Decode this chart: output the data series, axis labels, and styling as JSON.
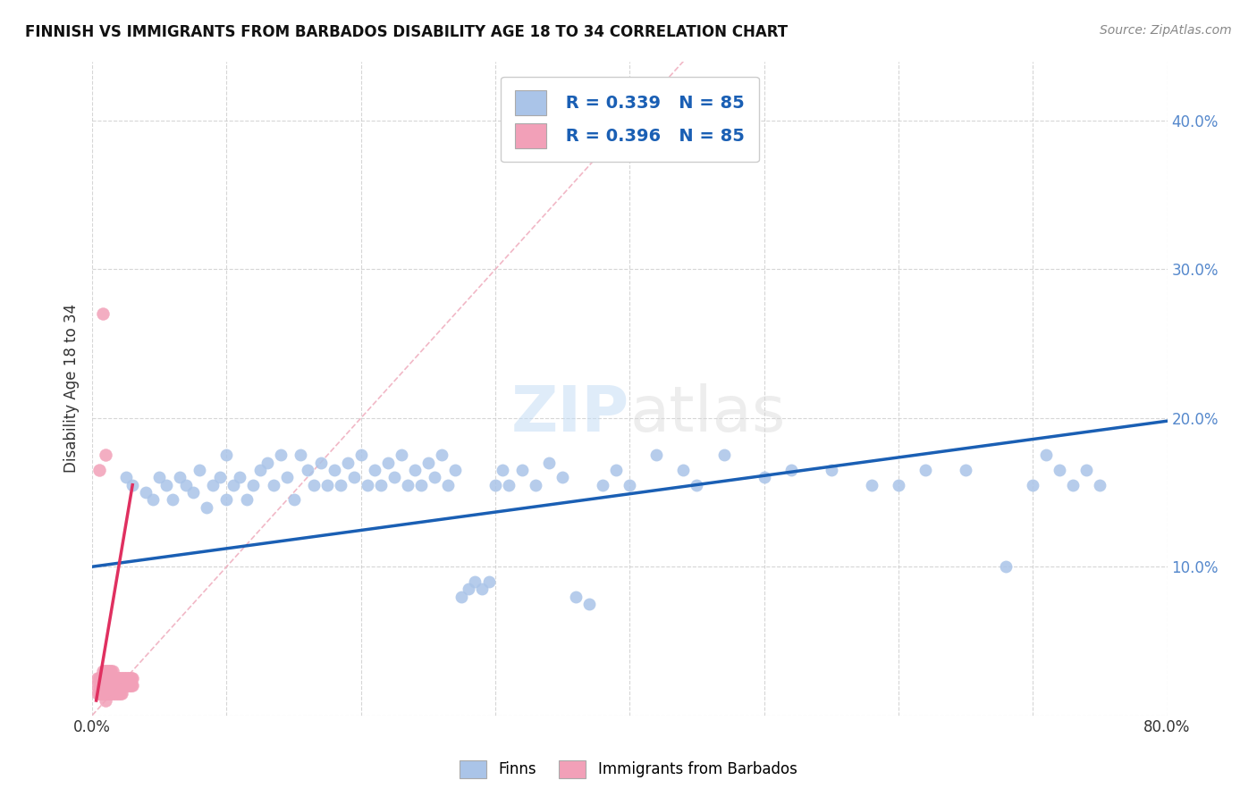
{
  "title": "FINNISH VS IMMIGRANTS FROM BARBADOS DISABILITY AGE 18 TO 34 CORRELATION CHART",
  "source": "Source: ZipAtlas.com",
  "ylabel": "Disability Age 18 to 34",
  "xlim": [
    0.0,
    0.8
  ],
  "ylim": [
    0.0,
    0.44
  ],
  "legend_r_blue": "R = 0.339",
  "legend_n_blue": "N = 85",
  "legend_r_pink": "R = 0.396",
  "legend_n_pink": "N = 85",
  "blue_color": "#aac4e8",
  "pink_color": "#f2a0b8",
  "blue_line_color": "#1a5fb4",
  "pink_line_color": "#e03060",
  "diag_color": "#f0b0c0",
  "watermark": "ZIPatlas",
  "tick_color": "#5588cc",
  "finns_x": [
    0.025,
    0.03,
    0.04,
    0.045,
    0.05,
    0.055,
    0.06,
    0.065,
    0.07,
    0.075,
    0.08,
    0.085,
    0.09,
    0.095,
    0.1,
    0.1,
    0.105,
    0.11,
    0.115,
    0.12,
    0.125,
    0.13,
    0.135,
    0.14,
    0.145,
    0.15,
    0.155,
    0.16,
    0.165,
    0.17,
    0.175,
    0.18,
    0.185,
    0.19,
    0.195,
    0.2,
    0.205,
    0.21,
    0.215,
    0.22,
    0.225,
    0.23,
    0.235,
    0.24,
    0.245,
    0.25,
    0.255,
    0.26,
    0.265,
    0.27,
    0.275,
    0.28,
    0.285,
    0.29,
    0.295,
    0.3,
    0.305,
    0.31,
    0.32,
    0.33,
    0.34,
    0.35,
    0.36,
    0.37,
    0.38,
    0.39,
    0.4,
    0.42,
    0.44,
    0.45,
    0.47,
    0.5,
    0.52,
    0.55,
    0.58,
    0.6,
    0.62,
    0.65,
    0.68,
    0.7,
    0.71,
    0.72,
    0.73,
    0.74,
    0.75
  ],
  "finns_y": [
    0.16,
    0.155,
    0.15,
    0.145,
    0.16,
    0.155,
    0.145,
    0.16,
    0.155,
    0.15,
    0.165,
    0.14,
    0.155,
    0.16,
    0.145,
    0.175,
    0.155,
    0.16,
    0.145,
    0.155,
    0.165,
    0.17,
    0.155,
    0.175,
    0.16,
    0.145,
    0.175,
    0.165,
    0.155,
    0.17,
    0.155,
    0.165,
    0.155,
    0.17,
    0.16,
    0.175,
    0.155,
    0.165,
    0.155,
    0.17,
    0.16,
    0.175,
    0.155,
    0.165,
    0.155,
    0.17,
    0.16,
    0.175,
    0.155,
    0.165,
    0.08,
    0.085,
    0.09,
    0.085,
    0.09,
    0.155,
    0.165,
    0.155,
    0.165,
    0.155,
    0.17,
    0.16,
    0.08,
    0.075,
    0.155,
    0.165,
    0.155,
    0.175,
    0.165,
    0.155,
    0.175,
    0.16,
    0.165,
    0.165,
    0.155,
    0.155,
    0.165,
    0.165,
    0.1,
    0.155,
    0.175,
    0.165,
    0.155,
    0.165,
    0.155
  ],
  "barbados_x": [
    0.003,
    0.004,
    0.004,
    0.005,
    0.005,
    0.005,
    0.006,
    0.006,
    0.006,
    0.007,
    0.007,
    0.007,
    0.008,
    0.008,
    0.008,
    0.008,
    0.009,
    0.009,
    0.009,
    0.009,
    0.01,
    0.01,
    0.01,
    0.01,
    0.01,
    0.011,
    0.011,
    0.011,
    0.011,
    0.012,
    0.012,
    0.012,
    0.012,
    0.013,
    0.013,
    0.013,
    0.013,
    0.014,
    0.014,
    0.014,
    0.014,
    0.015,
    0.015,
    0.015,
    0.015,
    0.016,
    0.016,
    0.016,
    0.017,
    0.017,
    0.017,
    0.018,
    0.018,
    0.018,
    0.019,
    0.019,
    0.019,
    0.02,
    0.02,
    0.02,
    0.021,
    0.021,
    0.021,
    0.022,
    0.022,
    0.022,
    0.023,
    0.023,
    0.024,
    0.024,
    0.025,
    0.025,
    0.026,
    0.026,
    0.027,
    0.027,
    0.028,
    0.028,
    0.029,
    0.029,
    0.03,
    0.03,
    0.005,
    0.008,
    0.01
  ],
  "barbados_y": [
    0.02,
    0.025,
    0.015,
    0.02,
    0.025,
    0.015,
    0.02,
    0.025,
    0.015,
    0.02,
    0.025,
    0.015,
    0.02,
    0.025,
    0.015,
    0.03,
    0.02,
    0.025,
    0.015,
    0.03,
    0.02,
    0.025,
    0.015,
    0.03,
    0.01,
    0.02,
    0.025,
    0.015,
    0.03,
    0.02,
    0.025,
    0.015,
    0.03,
    0.02,
    0.025,
    0.015,
    0.03,
    0.02,
    0.025,
    0.015,
    0.03,
    0.02,
    0.025,
    0.015,
    0.03,
    0.02,
    0.025,
    0.015,
    0.02,
    0.025,
    0.015,
    0.02,
    0.025,
    0.015,
    0.02,
    0.025,
    0.015,
    0.02,
    0.025,
    0.015,
    0.02,
    0.025,
    0.015,
    0.02,
    0.025,
    0.015,
    0.02,
    0.025,
    0.02,
    0.025,
    0.02,
    0.025,
    0.02,
    0.025,
    0.02,
    0.025,
    0.02,
    0.025,
    0.02,
    0.025,
    0.02,
    0.025,
    0.165,
    0.27,
    0.175
  ],
  "blue_trendline_x": [
    0.0,
    0.8
  ],
  "blue_trendline_y": [
    0.1,
    0.198
  ],
  "pink_trendline_x": [
    0.003,
    0.03
  ],
  "pink_trendline_y": [
    0.01,
    0.155
  ]
}
